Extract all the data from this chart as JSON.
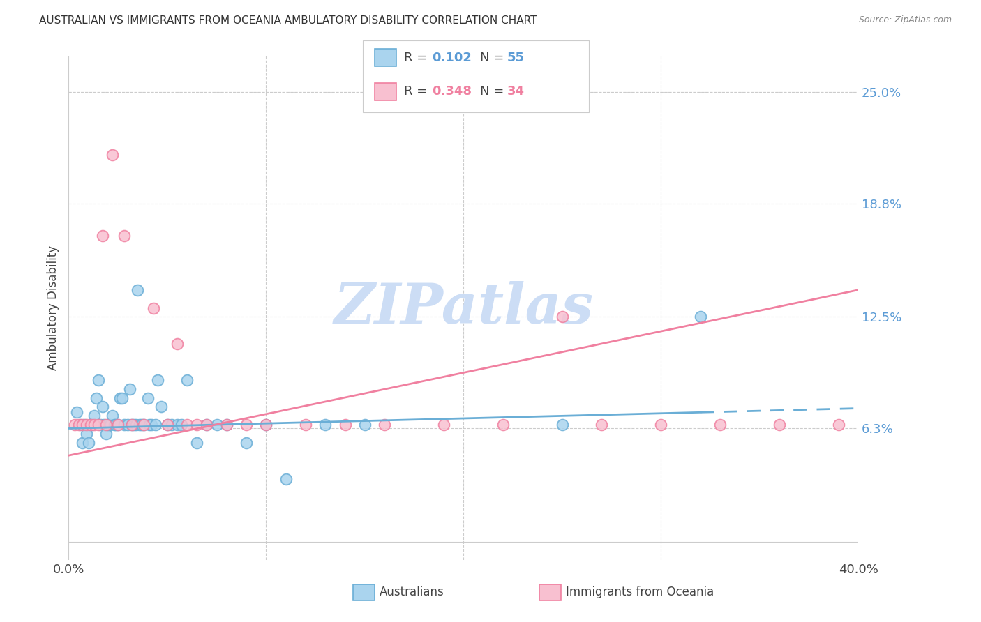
{
  "title": "AUSTRALIAN VS IMMIGRANTS FROM OCEANIA AMBULATORY DISABILITY CORRELATION CHART",
  "source": "Source: ZipAtlas.com",
  "ylabel": "Ambulatory Disability",
  "xmin": 0.0,
  "xmax": 0.4,
  "ymin": -0.01,
  "ymax": 0.27,
  "ytick_vals": [
    0.063,
    0.125,
    0.188,
    0.25
  ],
  "ytick_labels": [
    "6.3%",
    "12.5%",
    "18.8%",
    "25.0%"
  ],
  "aus_color": "#6aaed6",
  "aus_color_fill": "#aad4ee",
  "oceania_color": "#f080a0",
  "oceania_color_fill": "#f8c0d0",
  "background_color": "#ffffff",
  "watermark": "ZIPatlas",
  "watermark_color": "#ccddf5",
  "title_fontsize": 11,
  "source_fontsize": 9,
  "aus_x": [
    0.004,
    0.006,
    0.007,
    0.008,
    0.009,
    0.01,
    0.011,
    0.012,
    0.013,
    0.014,
    0.015,
    0.016,
    0.017,
    0.018,
    0.019,
    0.02,
    0.021,
    0.022,
    0.023,
    0.024,
    0.025,
    0.026,
    0.027,
    0.028,
    0.03,
    0.031,
    0.032,
    0.033,
    0.034,
    0.035,
    0.036,
    0.037,
    0.038,
    0.04,
    0.041,
    0.042,
    0.044,
    0.045,
    0.047,
    0.05,
    0.052,
    0.055,
    0.057,
    0.06,
    0.065,
    0.07,
    0.075,
    0.08,
    0.09,
    0.1,
    0.11,
    0.13,
    0.15,
    0.25,
    0.32
  ],
  "aus_y": [
    0.072,
    0.065,
    0.055,
    0.065,
    0.06,
    0.055,
    0.065,
    0.065,
    0.07,
    0.08,
    0.09,
    0.065,
    0.075,
    0.065,
    0.06,
    0.065,
    0.065,
    0.07,
    0.065,
    0.065,
    0.065,
    0.08,
    0.08,
    0.065,
    0.065,
    0.085,
    0.065,
    0.065,
    0.065,
    0.14,
    0.065,
    0.065,
    0.065,
    0.08,
    0.065,
    0.065,
    0.065,
    0.09,
    0.075,
    0.065,
    0.065,
    0.065,
    0.065,
    0.09,
    0.055,
    0.065,
    0.065,
    0.065,
    0.055,
    0.065,
    0.035,
    0.065,
    0.065,
    0.065,
    0.125
  ],
  "oce_x": [
    0.003,
    0.005,
    0.007,
    0.009,
    0.011,
    0.013,
    0.015,
    0.017,
    0.019,
    0.022,
    0.025,
    0.028,
    0.032,
    0.038,
    0.043,
    0.05,
    0.055,
    0.06,
    0.065,
    0.07,
    0.08,
    0.09,
    0.1,
    0.12,
    0.14,
    0.16,
    0.19,
    0.22,
    0.25,
    0.27,
    0.3,
    0.33,
    0.36,
    0.39
  ],
  "oce_y": [
    0.065,
    0.065,
    0.065,
    0.065,
    0.065,
    0.065,
    0.065,
    0.17,
    0.065,
    0.215,
    0.065,
    0.17,
    0.065,
    0.065,
    0.13,
    0.065,
    0.11,
    0.065,
    0.065,
    0.065,
    0.065,
    0.065,
    0.065,
    0.065,
    0.065,
    0.065,
    0.065,
    0.065,
    0.125,
    0.065,
    0.065,
    0.065,
    0.065,
    0.065
  ],
  "aus_R": 0.102,
  "aus_N": 55,
  "oce_R": 0.348,
  "oce_N": 34,
  "aus_trend_intercept": 0.063,
  "aus_trend_slope": 0.028,
  "oce_trend_intercept": 0.048,
  "oce_trend_slope": 0.23
}
